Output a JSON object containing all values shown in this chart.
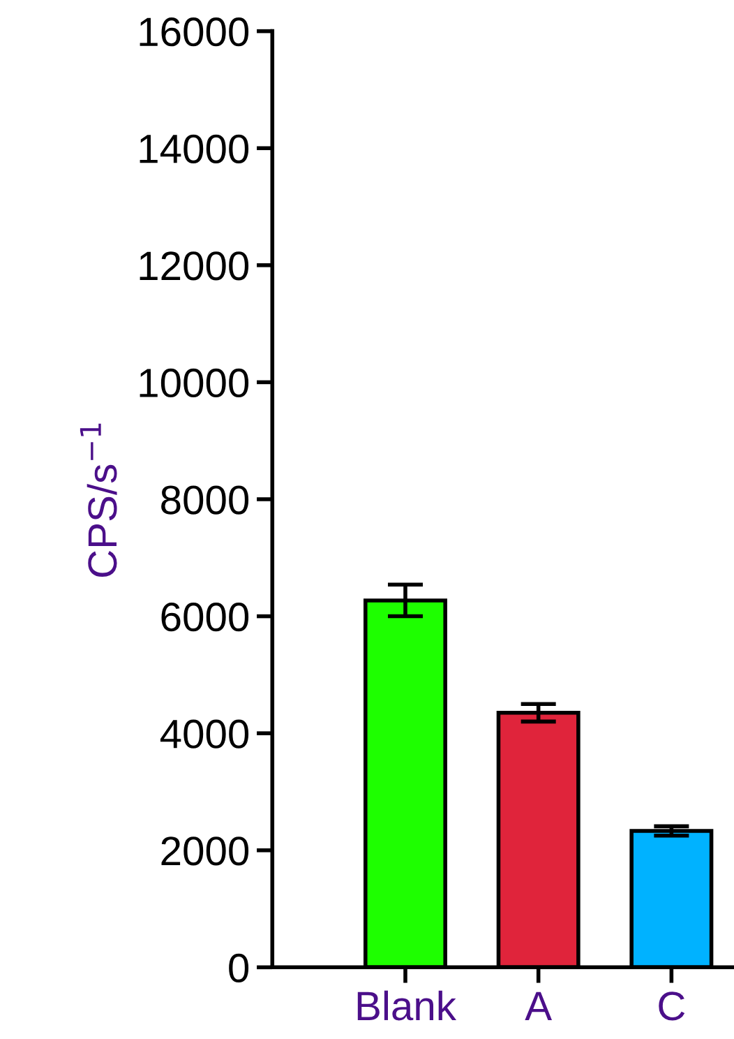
{
  "chart_data": {
    "type": "bar",
    "ylabel": "CPS/s$^{−1}$",
    "categories": [
      "Blank",
      "A",
      "C"
    ],
    "values": [
      6270,
      4350,
      2330
    ],
    "errors": [
      270,
      150,
      80
    ],
    "colors": [
      "#1eff00",
      "#e0243b",
      "#00b2ff"
    ],
    "ylim": [
      0,
      16000
    ],
    "yticks": [
      0,
      2000,
      4000,
      6000,
      8000,
      10000,
      12000,
      14000,
      16000
    ],
    "grid": false,
    "legend": false
  }
}
